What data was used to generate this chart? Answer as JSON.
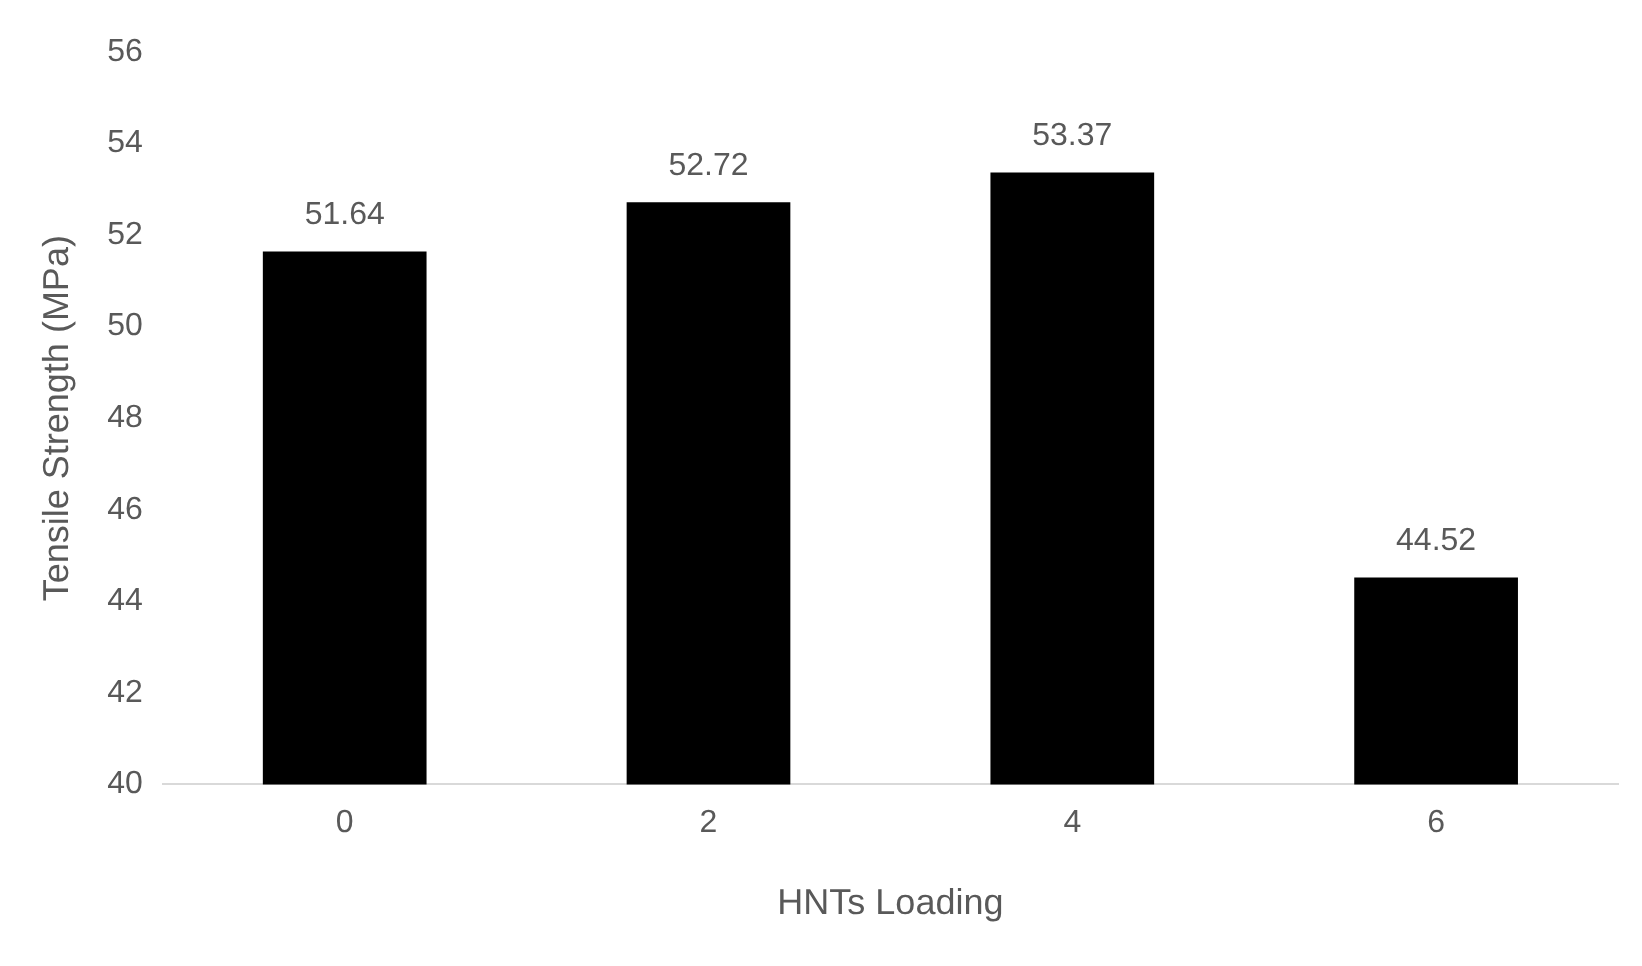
{
  "chart_data": {
    "type": "bar",
    "xlabel": "HNTs Loading",
    "ylabel": "Tensile Strength (MPa)",
    "categories": [
      "0",
      "2",
      "4",
      "6"
    ],
    "values": [
      51.64,
      52.72,
      53.37,
      44.52
    ],
    "color": "#000000",
    "ylim": [
      40,
      56
    ],
    "yticks": [
      40,
      42,
      44,
      46,
      48,
      50,
      52,
      54,
      56
    ],
    "grid": false,
    "data_labels": true
  }
}
